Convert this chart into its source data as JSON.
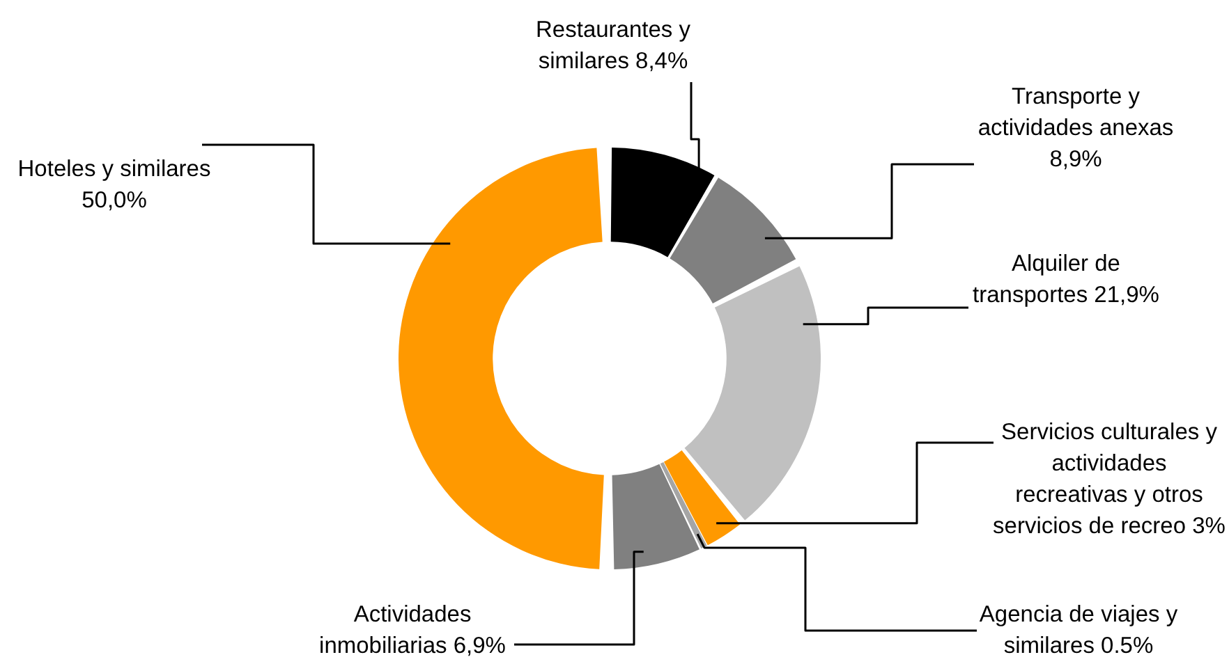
{
  "chart_data": {
    "type": "donut",
    "categories": [
      "Restaurantes y similares",
      "Transporte y actividades anexas",
      "Alquiler de transportes",
      "Servicios culturales y actividades recreativas y otros servicios de recreo",
      "Agencia de viajes y similares",
      "Actividades inmobiliarias",
      "Hoteles y similares"
    ],
    "values": [
      8.4,
      8.9,
      21.9,
      3,
      0.5,
      6.9,
      50.0
    ],
    "value_labels": [
      "8,4%",
      "8,9%",
      "21,9%",
      "3%",
      "0.5%",
      "6,9%",
      "50,0%"
    ],
    "colors": [
      "#000000",
      "#808080",
      "#c0c0c0",
      "#ff9900",
      "#a5a5a5",
      "#808080",
      "#ff9900"
    ],
    "legend": false
  }
}
